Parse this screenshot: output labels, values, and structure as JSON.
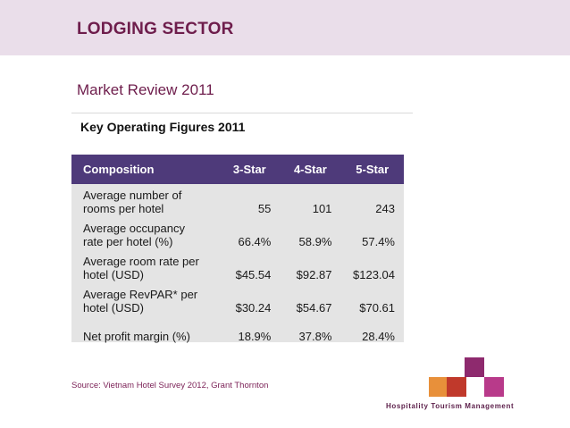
{
  "slide": {
    "title": "LODGING SECTOR",
    "subtitle": "Market Review 2011"
  },
  "figure": {
    "caption": "Key Operating Figures 2011"
  },
  "table": {
    "headers": [
      "Composition",
      "3-Star",
      "4-Star",
      "5-Star"
    ],
    "rows": [
      {
        "label_line1": "Average number of",
        "label_line2": "rooms per hotel",
        "values": [
          "55",
          "101",
          "243"
        ]
      },
      {
        "label_line1": "Average occupancy",
        "label_line2": "rate per hotel (%)",
        "values": [
          "66.4%",
          "58.9%",
          "57.4%"
        ]
      },
      {
        "label_line1": "Average room rate per",
        "label_line2": "hotel (USD)",
        "values": [
          "$45.54",
          "$92.87",
          "$123.04"
        ]
      },
      {
        "label_line1": "Average RevPAR* per",
        "label_line2": "hotel (USD)",
        "values": [
          "$30.24",
          "$54.67",
          "$70.61"
        ]
      },
      {
        "label_line1": "Net profit margin (%)",
        "label_line2": "",
        "values": [
          "18.9%",
          "37.8%",
          "28.4%"
        ]
      }
    ]
  },
  "source": "Source: Vietnam Hotel Survey 2012, Grant Thornton",
  "logo": {
    "brand_text": "Hospitality Tourism Management",
    "colors": [
      "#e8903a",
      "#c0392b",
      "#8e2a6e",
      "#b83a8a"
    ]
  },
  "colors": {
    "header_band": "#eadeea",
    "title": "#6e1d4c",
    "table_header": "#4e3a7a",
    "table_body": "#e4e4e4"
  }
}
